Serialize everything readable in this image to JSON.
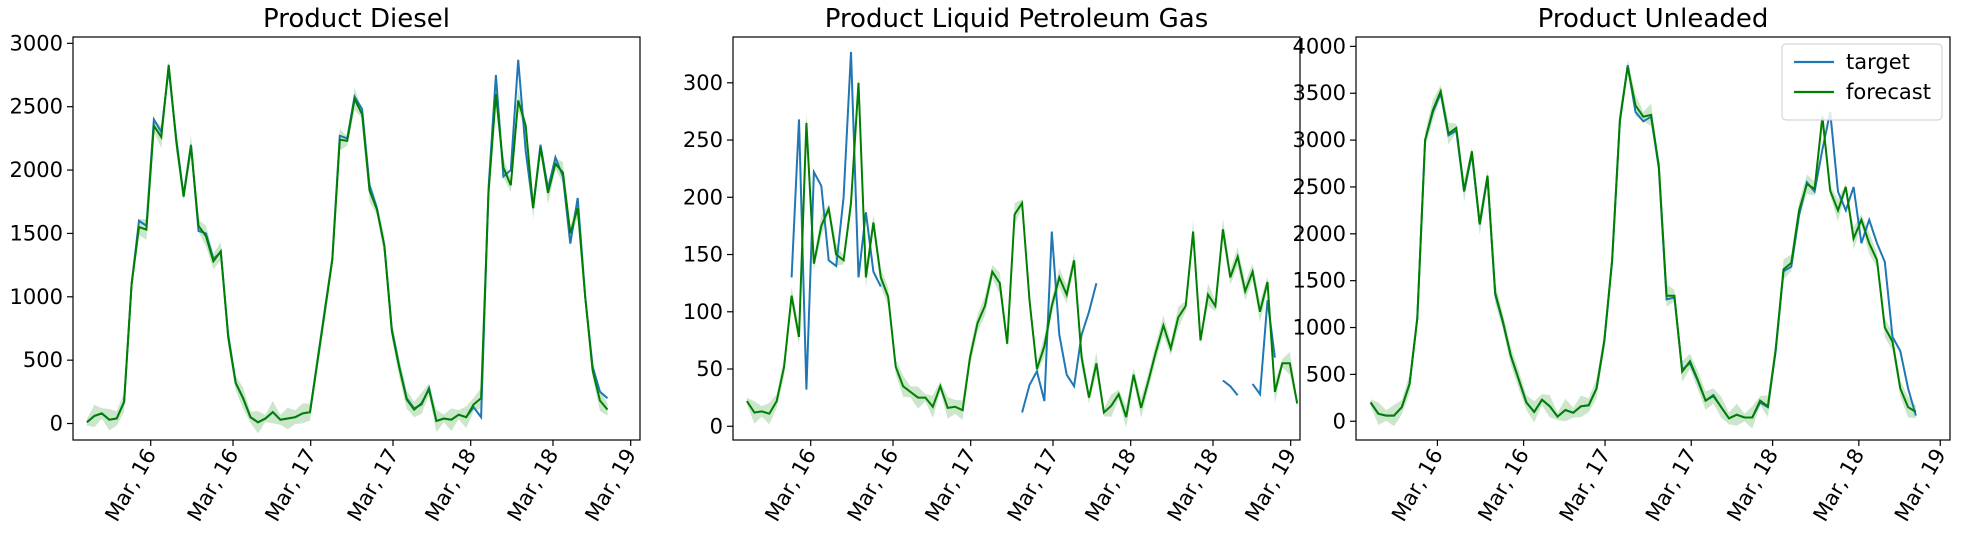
{
  "chart_data": [
    {
      "type": "line",
      "title": "Product Diesel",
      "xlabel": "",
      "ylabel": "",
      "x_tick_labels": [
        "Mar, 16",
        "Mar, 16",
        "Mar, 17",
        "Mar, 17",
        "Mar, 18",
        "Mar, 18",
        "Mar, 19"
      ],
      "xlim": [
        -3,
        119
      ],
      "ylim": [
        -130,
        3050
      ],
      "yticks": [
        0,
        500,
        1000,
        1500,
        2000,
        2500,
        3000
      ],
      "series": [
        {
          "name": "target",
          "color": "#1f77b4",
          "x_start": 0,
          "values": [
            10,
            60,
            80,
            30,
            40,
            170,
            1100,
            1600,
            1560,
            2400,
            2300,
            2800,
            2250,
            1800,
            2200,
            1520,
            1500,
            1300,
            1350,
            700,
            320,
            200,
            50,
            10,
            40,
            90,
            30,
            40,
            50,
            80,
            90,
            500,
            900,
            1300,
            2270,
            2250,
            2580,
            2480,
            1880,
            1700,
            1400,
            750,
            450,
            200,
            120,
            150,
            280,
            20,
            40,
            30,
            70,
            50,
            130,
            50,
            1850,
            2750,
            1950,
            2000,
            2870,
            2150,
            1700,
            2200,
            1850,
            2100,
            1950,
            1420,
            1780,
            1000,
            450,
            250,
            200
          ]
        },
        {
          "name": "forecast",
          "color": "#008000",
          "x_start": 0,
          "values": [
            10,
            60,
            80,
            30,
            40,
            170,
            1100,
            1550,
            1530,
            2350,
            2260,
            2830,
            2230,
            1790,
            2190,
            1560,
            1480,
            1280,
            1360,
            680,
            320,
            200,
            50,
            10,
            40,
            90,
            30,
            40,
            50,
            80,
            90,
            490,
            890,
            1290,
            2240,
            2230,
            2560,
            2440,
            1840,
            1690,
            1400,
            730,
            440,
            190,
            110,
            160,
            270,
            20,
            40,
            30,
            70,
            50,
            150,
            200,
            1820,
            2600,
            2020,
            1880,
            2550,
            2350,
            1700,
            2180,
            1820,
            2050,
            1980,
            1500,
            1700,
            1000,
            420,
            180,
            110
          ]
        }
      ],
      "band_color": "#008000"
    },
    {
      "type": "line",
      "title": "Product Liquid Petroleum Gas",
      "xlabel": "",
      "ylabel": "",
      "x_tick_labels": [
        "Mar, 16",
        "Mar, 16",
        "Mar, 17",
        "Mar, 17",
        "Mar, 18",
        "Mar, 18",
        "Mar, 19"
      ],
      "xlim": [
        -3,
        119
      ],
      "ylim": [
        -12,
        340
      ],
      "yticks": [
        0,
        50,
        100,
        150,
        200,
        250,
        300
      ],
      "series": [
        {
          "name": "target",
          "color": "#1f77b4",
          "x_start": 0,
          "values": [
            null,
            null,
            null,
            null,
            null,
            null,
            130,
            268,
            32,
            222,
            210,
            145,
            140,
            200,
            327,
            130,
            187,
            135,
            122,
            null,
            null,
            null,
            null,
            null,
            null,
            null,
            null,
            null,
            null,
            null,
            null,
            null,
            null,
            null,
            null,
            null,
            null,
            12,
            36,
            48,
            22,
            170,
            80,
            45,
            35,
            80,
            100,
            125,
            null,
            null,
            null,
            null,
            null,
            null,
            null,
            null,
            null,
            null,
            null,
            null,
            null,
            null,
            null,
            null,
            40,
            35,
            27,
            null,
            37,
            28,
            110,
            60,
            null,
            null,
            null,
            null,
            null,
            null,
            null,
            null,
            null,
            null,
            null,
            null,
            null,
            null,
            null
          ]
        },
        {
          "name": "forecast",
          "color": "#008000",
          "x_start": 0,
          "values": [
            22,
            12,
            13,
            11,
            22,
            52,
            114,
            78,
            265,
            142,
            175,
            190,
            150,
            145,
            195,
            300,
            130,
            178,
            130,
            113,
            52,
            35,
            30,
            25,
            25,
            17,
            35,
            16,
            17,
            14,
            60,
            90,
            105,
            135,
            125,
            72,
            185,
            195,
            110,
            50,
            70,
            105,
            130,
            115,
            145,
            60,
            25,
            55,
            12,
            18,
            28,
            8,
            45,
            16,
            40,
            65,
            88,
            68,
            95,
            105,
            170,
            75,
            115,
            105,
            172,
            130,
            148,
            118,
            135,
            100,
            126,
            30,
            55,
            55,
            20
          ]
        }
      ],
      "band_color": "#008000"
    },
    {
      "type": "line",
      "title": "Product Unleaded",
      "xlabel": "",
      "ylabel": "",
      "x_tick_labels": [
        "Mar, 16",
        "Mar, 16",
        "Mar, 17",
        "Mar, 17",
        "Mar, 18",
        "Mar, 18",
        "Mar, 19"
      ],
      "xlim": [
        -3,
        119
      ],
      "ylim": [
        -200,
        4100
      ],
      "yticks": [
        0,
        500,
        1000,
        1500,
        2000,
        2500,
        3000,
        3500,
        4000
      ],
      "legend": {
        "position": "top-right",
        "entries": [
          {
            "label": "target",
            "color": "#1f77b4"
          },
          {
            "label": "forecast",
            "color": "#008000"
          }
        ]
      },
      "series": [
        {
          "name": "target",
          "color": "#1f77b4",
          "x_start": 0,
          "values": [
            200,
            80,
            60,
            60,
            150,
            400,
            1100,
            3000,
            3300,
            3500,
            3050,
            3100,
            2450,
            2850,
            2100,
            2600,
            1350,
            1050,
            700,
            450,
            200,
            100,
            230,
            160,
            50,
            120,
            90,
            160,
            170,
            350,
            850,
            1700,
            3200,
            3800,
            3300,
            3200,
            3250,
            2700,
            1300,
            1320,
            550,
            620,
            430,
            220,
            280,
            150,
            30,
            70,
            40,
            40,
            200,
            150,
            750,
            1600,
            1650,
            2200,
            2550,
            2450,
            2900,
            3300,
            2450,
            2250,
            2500,
            1900,
            2150,
            1900,
            1700,
            900,
            750,
            350,
            60
          ]
        },
        {
          "name": "forecast",
          "color": "#008000",
          "x_start": 0,
          "values": [
            200,
            80,
            60,
            60,
            150,
            400,
            1100,
            3000,
            3320,
            3520,
            3070,
            3130,
            2460,
            2880,
            2100,
            2620,
            1370,
            1060,
            700,
            450,
            200,
            100,
            230,
            160,
            50,
            120,
            90,
            160,
            170,
            350,
            860,
            1720,
            3220,
            3780,
            3370,
            3250,
            3270,
            2730,
            1340,
            1340,
            530,
            640,
            440,
            220,
            270,
            150,
            30,
            70,
            40,
            40,
            220,
            160,
            770,
            1620,
            1690,
            2250,
            2530,
            2480,
            3250,
            2460,
            2250,
            2500,
            1950,
            2150,
            1900,
            1720,
            1000,
            850,
            350,
            150,
            100
          ]
        }
      ],
      "band_color": "#008000"
    }
  ]
}
